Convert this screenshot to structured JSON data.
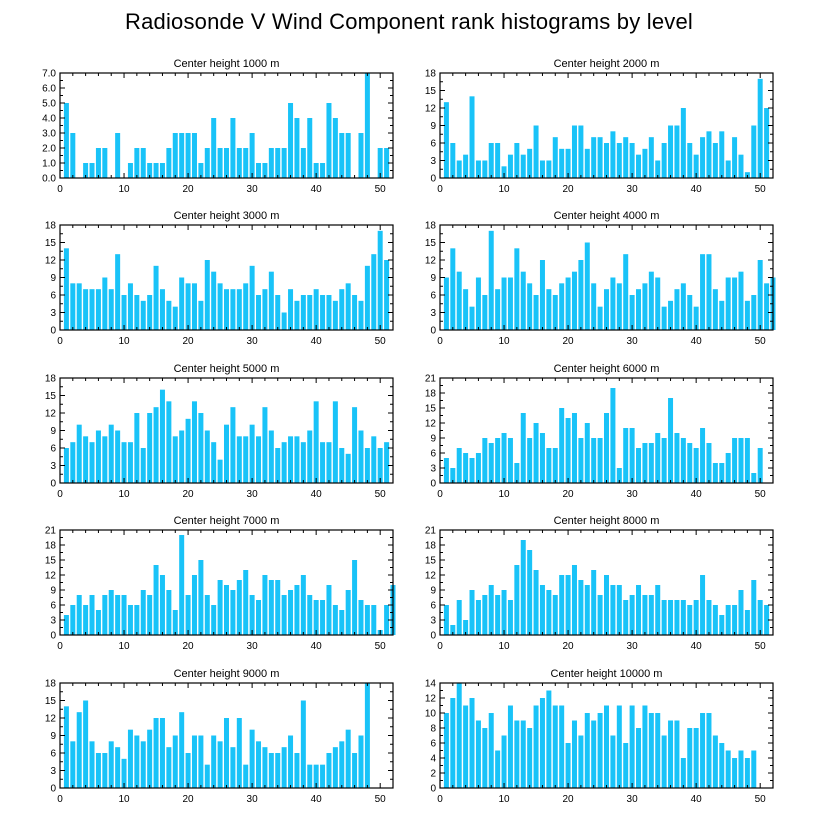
{
  "title": "Radiosonde V Wind Component rank histograms by level",
  "colors": {
    "bar": "#19c3f8",
    "axis": "#000000"
  },
  "chart_data": [
    {
      "type": "bar",
      "title": "Center height 1000 m",
      "xlim": [
        0,
        52
      ],
      "ylim": [
        0,
        7
      ],
      "xticks": [
        0,
        10,
        20,
        30,
        40,
        50
      ],
      "yticks": [
        0,
        1,
        2,
        3,
        4,
        5,
        6,
        7
      ],
      "yticklabels": [
        "0.0",
        "1.0",
        "2.0",
        "3.0",
        "4.0",
        "5.0",
        "6.0",
        "7.0"
      ],
      "values": [
        5,
        3,
        0,
        1,
        1,
        2,
        2,
        0,
        3,
        0,
        1,
        2,
        2,
        1,
        1,
        1,
        2,
        3,
        3,
        3,
        3,
        1,
        2,
        4,
        2,
        2,
        4,
        2,
        2,
        3,
        1,
        1,
        2,
        2,
        2,
        5,
        4,
        2,
        4,
        1,
        1,
        5,
        4,
        3,
        3,
        0,
        3,
        7,
        0,
        2,
        2,
        0
      ]
    },
    {
      "type": "bar",
      "title": "Center height 2000 m",
      "xlim": [
        0,
        52
      ],
      "ylim": [
        0,
        18
      ],
      "xticks": [
        0,
        10,
        20,
        30,
        40,
        50
      ],
      "yticks": [
        0,
        3,
        6,
        9,
        12,
        15,
        18
      ],
      "yticklabels": [
        "0",
        "3",
        "6",
        "9",
        "12",
        "15",
        "18"
      ],
      "values": [
        13,
        6,
        3,
        4,
        14,
        3,
        3,
        6,
        6,
        2,
        4,
        6,
        4,
        5,
        9,
        3,
        3,
        7,
        5,
        5,
        9,
        9,
        5,
        7,
        7,
        6,
        8,
        6,
        7,
        6,
        4,
        5,
        7,
        3,
        6,
        9,
        9,
        12,
        6,
        4,
        7,
        8,
        6,
        8,
        3,
        7,
        4,
        1,
        9,
        17,
        12,
        0
      ]
    },
    {
      "type": "bar",
      "title": "Center height 3000 m",
      "xlim": [
        0,
        52
      ],
      "ylim": [
        0,
        18
      ],
      "xticks": [
        0,
        10,
        20,
        30,
        40,
        50
      ],
      "yticks": [
        0,
        3,
        6,
        9,
        12,
        15,
        18
      ],
      "yticklabels": [
        "0",
        "3",
        "6",
        "9",
        "12",
        "15",
        "18"
      ],
      "values": [
        14,
        8,
        8,
        7,
        7,
        7,
        9,
        7,
        13,
        6,
        8,
        6,
        5,
        6,
        11,
        7,
        5,
        4,
        9,
        8,
        8,
        5,
        12,
        10,
        8,
        7,
        7,
        7,
        8,
        11,
        6,
        7,
        10,
        6,
        3,
        7,
        5,
        6,
        6,
        7,
        6,
        6,
        5,
        7,
        8,
        6,
        5,
        11,
        13,
        17,
        12,
        0
      ]
    },
    {
      "type": "bar",
      "title": "Center height 4000 m",
      "xlim": [
        0,
        52
      ],
      "ylim": [
        0,
        18
      ],
      "xticks": [
        0,
        10,
        20,
        30,
        40,
        50
      ],
      "yticks": [
        0,
        3,
        6,
        9,
        12,
        15,
        18
      ],
      "yticklabels": [
        "0",
        "3",
        "6",
        "9",
        "12",
        "15",
        "18"
      ],
      "values": [
        9,
        14,
        10,
        7,
        4,
        9,
        6,
        17,
        7,
        9,
        9,
        14,
        10,
        8,
        6,
        12,
        7,
        6,
        8,
        9,
        10,
        12,
        15,
        8,
        4,
        7,
        9,
        8,
        13,
        6,
        7,
        8,
        10,
        9,
        4,
        5,
        7,
        8,
        6,
        4,
        13,
        13,
        7,
        5,
        9,
        9,
        10,
        5,
        6,
        12,
        8,
        9
      ]
    },
    {
      "type": "bar",
      "title": "Center height 5000 m",
      "xlim": [
        0,
        52
      ],
      "ylim": [
        0,
        18
      ],
      "xticks": [
        0,
        10,
        20,
        30,
        40,
        50
      ],
      "yticks": [
        0,
        3,
        6,
        9,
        12,
        15,
        18
      ],
      "yticklabels": [
        "0",
        "3",
        "6",
        "9",
        "12",
        "15",
        "18"
      ],
      "values": [
        6,
        7,
        10,
        8,
        7,
        9,
        8,
        10,
        9,
        7,
        7,
        12,
        6,
        12,
        13,
        16,
        14,
        8,
        9,
        11,
        14,
        12,
        9,
        7,
        4,
        10,
        13,
        8,
        8,
        10,
        8,
        13,
        9,
        6,
        7,
        8,
        8,
        7,
        9,
        14,
        7,
        7,
        14,
        6,
        5,
        13,
        9,
        6,
        8,
        6,
        7,
        0
      ]
    },
    {
      "type": "bar",
      "title": "Center height 6000 m",
      "xlim": [
        0,
        52
      ],
      "ylim": [
        0,
        21
      ],
      "xticks": [
        0,
        10,
        20,
        30,
        40,
        50
      ],
      "yticks": [
        0,
        3,
        6,
        9,
        12,
        15,
        18,
        21
      ],
      "yticklabels": [
        "0",
        "3",
        "6",
        "9",
        "12",
        "15",
        "18",
        "21"
      ],
      "values": [
        5,
        3,
        7,
        6,
        5,
        6,
        9,
        8,
        9,
        10,
        9,
        4,
        14,
        9,
        12,
        10,
        7,
        7,
        15,
        13,
        14,
        9,
        12,
        9,
        9,
        14,
        19,
        3,
        11,
        11,
        7,
        8,
        8,
        10,
        9,
        17,
        10,
        9,
        8,
        7,
        11,
        8,
        4,
        4,
        6,
        9,
        9,
        9,
        2,
        7,
        0,
        0
      ]
    },
    {
      "type": "bar",
      "title": "Center height 7000 m",
      "xlim": [
        0,
        52
      ],
      "ylim": [
        0,
        21
      ],
      "xticks": [
        0,
        10,
        20,
        30,
        40,
        50
      ],
      "yticks": [
        0,
        3,
        6,
        9,
        12,
        15,
        18,
        21
      ],
      "yticklabels": [
        "0",
        "3",
        "6",
        "9",
        "12",
        "15",
        "18",
        "21"
      ],
      "values": [
        4,
        6,
        8,
        6,
        8,
        5,
        8,
        9,
        8,
        8,
        6,
        6,
        9,
        8,
        14,
        12,
        9,
        5,
        20,
        8,
        12,
        15,
        8,
        6,
        11,
        10,
        9,
        11,
        13,
        8,
        7,
        12,
        11,
        11,
        8,
        9,
        10,
        12,
        8,
        7,
        7,
        10,
        6,
        5,
        9,
        15,
        7,
        6,
        6,
        1,
        6,
        10
      ]
    },
    {
      "type": "bar",
      "title": "Center height 8000 m",
      "xlim": [
        0,
        52
      ],
      "ylim": [
        0,
        21
      ],
      "xticks": [
        0,
        10,
        20,
        30,
        40,
        50
      ],
      "yticks": [
        0,
        3,
        6,
        9,
        12,
        15,
        18,
        21
      ],
      "yticklabels": [
        "0",
        "3",
        "6",
        "9",
        "12",
        "15",
        "18",
        "21"
      ],
      "values": [
        6,
        2,
        7,
        3,
        9,
        7,
        8,
        10,
        8,
        9,
        7,
        14,
        19,
        17,
        13,
        10,
        9,
        8,
        12,
        12,
        14,
        11,
        10,
        13,
        8,
        12,
        10,
        10,
        7,
        8,
        10,
        8,
        8,
        10,
        7,
        7,
        7,
        7,
        6,
        7,
        12,
        7,
        6,
        4,
        6,
        6,
        9,
        5,
        11,
        7,
        6,
        0
      ]
    },
    {
      "type": "bar",
      "title": "Center height 9000 m",
      "xlim": [
        0,
        52
      ],
      "ylim": [
        0,
        18
      ],
      "xticks": [
        0,
        10,
        20,
        30,
        40,
        50
      ],
      "yticks": [
        0,
        3,
        6,
        9,
        12,
        15,
        18
      ],
      "yticklabels": [
        "0",
        "3",
        "6",
        "9",
        "12",
        "15",
        "18"
      ],
      "values": [
        14,
        8,
        13,
        15,
        8,
        6,
        6,
        8,
        7,
        5,
        10,
        9,
        8,
        10,
        12,
        12,
        7,
        9,
        13,
        6,
        9,
        9,
        4,
        9,
        8,
        12,
        7,
        12,
        4,
        10,
        8,
        7,
        6,
        6,
        7,
        9,
        6,
        15,
        4,
        4,
        4,
        6,
        7,
        8,
        10,
        6,
        9,
        18,
        0,
        0,
        0,
        0
      ]
    },
    {
      "type": "bar",
      "title": "Center height 10000 m",
      "xlim": [
        0,
        52
      ],
      "ylim": [
        0,
        14
      ],
      "xticks": [
        0,
        10,
        20,
        30,
        40,
        50
      ],
      "yticks": [
        0,
        2,
        4,
        6,
        8,
        10,
        12,
        14
      ],
      "yticklabels": [
        "0",
        "2",
        "4",
        "6",
        "8",
        "10",
        "12",
        "14"
      ],
      "values": [
        10,
        12,
        14,
        11,
        12,
        9,
        8,
        10,
        5,
        7,
        11,
        9,
        9,
        8,
        11,
        12,
        13,
        11,
        11,
        6,
        9,
        7,
        10,
        9,
        10,
        11,
        7,
        11,
        6,
        11,
        8,
        11,
        10,
        10,
        7,
        9,
        9,
        4,
        8,
        8,
        10,
        10,
        7,
        6,
        5,
        4,
        5,
        4,
        5,
        0,
        0,
        0
      ]
    }
  ]
}
